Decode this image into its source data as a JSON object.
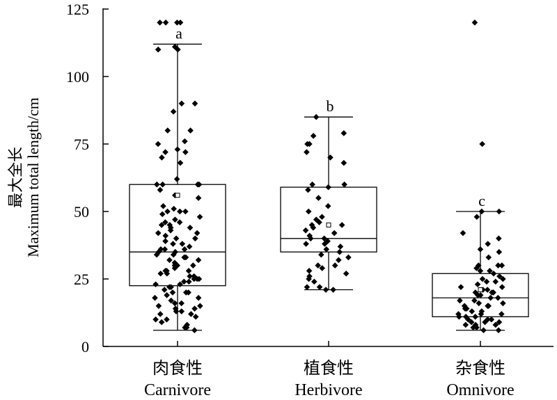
{
  "chart_data": {
    "type": "box",
    "ylabel_cn": "最大全长",
    "ylabel_en": "Maximum total length/cm",
    "ylim": [
      0,
      125
    ],
    "yticks": [
      0,
      25,
      50,
      75,
      100,
      125
    ],
    "grid": false,
    "groups": [
      {
        "label_cn": "肉食性",
        "label_en": "Carnivore",
        "letter": "a",
        "whisker_low": 6,
        "q1": 22.5,
        "median": 35,
        "q3": 60,
        "whisker_high": 112,
        "mean": 56,
        "points": [
          120,
          120,
          120,
          120,
          111,
          110,
          110,
          90,
          90,
          87,
          80,
          80,
          76,
          75,
          73,
          72,
          72,
          70,
          68,
          62,
          60,
          60,
          60,
          60,
          58,
          56,
          55,
          52,
          51,
          50,
          50,
          50,
          49,
          48,
          47,
          46,
          46,
          45,
          45,
          44,
          44,
          43,
          42,
          42,
          41,
          40,
          40,
          39,
          38,
          38,
          37,
          36,
          36,
          36,
          35,
          35,
          34,
          34,
          33,
          33,
          32,
          32,
          31,
          30,
          30,
          30,
          30,
          29,
          28,
          28,
          28,
          27,
          27,
          26,
          26,
          25,
          25,
          25,
          24,
          24,
          23,
          23,
          22,
          22,
          21,
          20,
          20,
          20,
          19,
          18,
          18,
          17,
          16,
          16,
          15,
          15,
          14,
          14,
          13,
          13,
          12,
          12,
          11,
          10,
          10,
          9,
          8,
          7,
          7,
          6
        ]
      },
      {
        "label_cn": "植食性",
        "label_en": "Herbivore",
        "letter": "b",
        "whisker_low": 21,
        "q1": 35,
        "median": 40,
        "q3": 59,
        "whisker_high": 85,
        "mean": 45,
        "points": [
          85,
          79,
          78,
          75,
          75,
          72,
          70,
          68,
          60,
          60,
          59,
          58,
          55,
          52,
          50,
          48,
          47,
          46,
          45,
          45,
          44,
          43,
          42,
          41,
          40,
          40,
          39,
          38,
          38,
          37,
          36,
          35,
          34,
          33,
          32,
          30,
          30,
          29,
          28,
          27,
          26,
          25,
          24,
          22,
          22,
          21,
          21
        ]
      },
      {
        "label_cn": "杂食性",
        "label_en": "Omnivore",
        "letter": "c",
        "whisker_low": 6,
        "q1": 11,
        "median": 18,
        "q3": 27,
        "whisker_high": 50,
        "mean": 21,
        "points": [
          120,
          75,
          50,
          50,
          48,
          42,
          40,
          38,
          36,
          35,
          33,
          30,
          30,
          30,
          29,
          28,
          28,
          27,
          26,
          25,
          25,
          24,
          24,
          23,
          22,
          22,
          21,
          21,
          20,
          20,
          20,
          19,
          19,
          18,
          18,
          17,
          17,
          16,
          16,
          15,
          15,
          15,
          14,
          14,
          13,
          13,
          12,
          12,
          12,
          11,
          11,
          11,
          10,
          10,
          10,
          9,
          9,
          9,
          8,
          8,
          8,
          7,
          7,
          6,
          6
        ]
      }
    ]
  }
}
